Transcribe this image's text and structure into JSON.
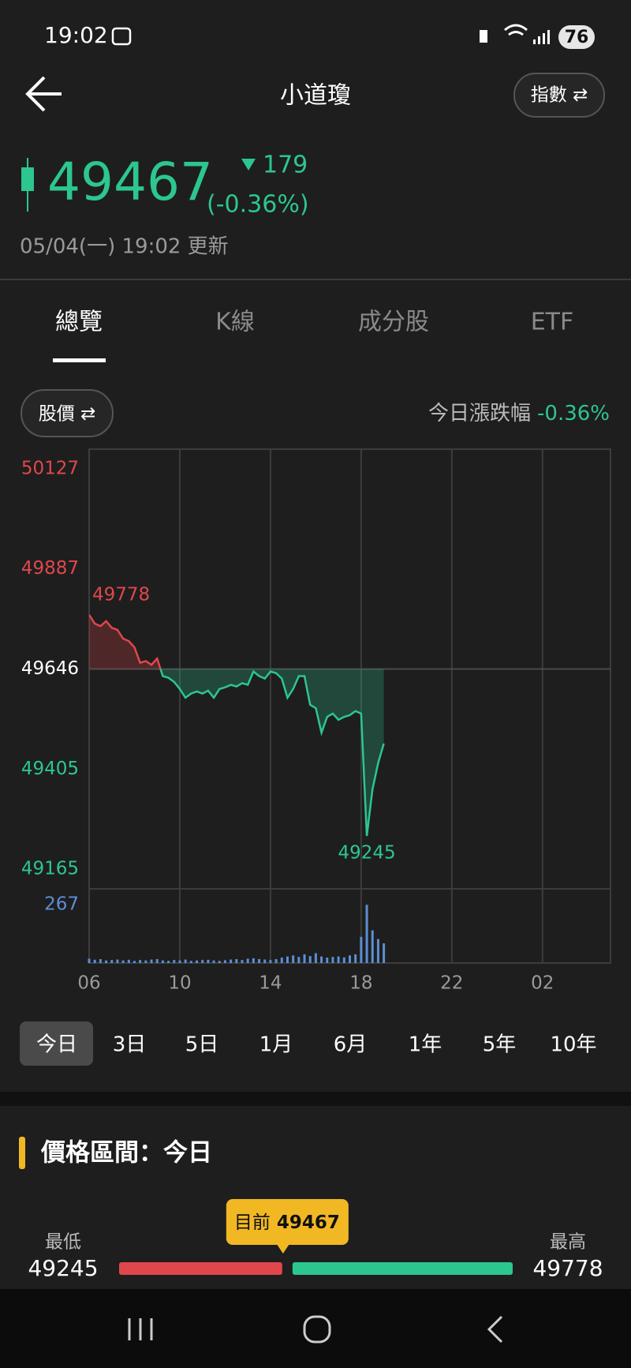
{
  "status_bar": {
    "time": "19:02",
    "battery": "76"
  },
  "header": {
    "title": "小道瓊",
    "toggle": "指數 ⇄"
  },
  "quote": {
    "price": "49467",
    "change": "179",
    "change_pct": "(-0.36%)",
    "updated": "05/04(一) 19:02 更新"
  },
  "tabs": [
    "總覽",
    "K線",
    "成分股",
    "ETF"
  ],
  "chart_header": {
    "mode": "股價 ⇄",
    "label": "今日漲跌幅",
    "value": "-0.36%"
  },
  "chart_data": {
    "type": "line",
    "up_color": "#e0474c",
    "down_color": "#2cc78e",
    "baseline": 49646,
    "x": [
      6,
      6.25,
      6.5,
      6.75,
      7,
      7.25,
      7.5,
      7.75,
      8,
      8.25,
      8.5,
      8.75,
      9,
      9.25,
      9.5,
      9.75,
      10,
      10.25,
      10.5,
      10.75,
      11,
      11.25,
      11.5,
      11.75,
      12,
      12.25,
      12.5,
      12.75,
      13,
      13.25,
      13.5,
      13.75,
      14,
      14.25,
      14.5,
      14.75,
      15,
      15.25,
      15.5,
      15.75,
      16,
      16.25,
      16.5,
      16.75,
      17,
      17.25,
      17.5,
      17.75,
      18,
      18.25,
      18.5,
      18.75,
      19
    ],
    "values": [
      49776,
      49755,
      49749,
      49761,
      49745,
      49740,
      49719,
      49713,
      49698,
      49661,
      49665,
      49656,
      49671,
      49629,
      49625,
      49615,
      49598,
      49577,
      49587,
      49592,
      49587,
      49594,
      49577,
      49598,
      49602,
      49608,
      49604,
      49612,
      49608,
      49640,
      49629,
      49623,
      49640,
      49636,
      49623,
      49577,
      49598,
      49629,
      49629,
      49560,
      49552,
      49493,
      49531,
      49539,
      49524,
      49531,
      49535,
      49545,
      49539,
      49245,
      49357,
      49420,
      49467
    ],
    "xlim": [
      6,
      29
    ],
    "xticks": [
      {
        "value": 6,
        "label": "06"
      },
      10,
      14,
      18,
      22,
      {
        "value": 26,
        "label": "02"
      }
    ],
    "ylim": [
      49118,
      50174
    ],
    "yticks": [
      50127,
      49887,
      49646,
      49405,
      49165
    ],
    "annotations": [
      {
        "x": 6,
        "value": 49778
      },
      {
        "x": 18.25,
        "value": 49245
      }
    ],
    "volume": {
      "color": "#5b8fd6",
      "ylim": [
        0,
        340
      ],
      "yticks": [
        267
      ],
      "values": [
        20,
        15,
        18,
        12,
        14,
        16,
        12,
        15,
        10,
        14,
        12,
        16,
        18,
        12,
        10,
        14,
        12,
        16,
        10,
        12,
        14,
        15,
        12,
        10,
        13,
        16,
        18,
        14,
        20,
        22,
        18,
        16,
        14,
        18,
        25,
        30,
        35,
        28,
        40,
        32,
        45,
        30,
        25,
        28,
        30,
        26,
        35,
        40,
        120,
        267,
        150,
        110,
        90
      ]
    }
  },
  "ranges": [
    "今日",
    "3日",
    "5日",
    "1月",
    "6月",
    "1年",
    "5年",
    "10年"
  ],
  "price_range": {
    "title": "價格區間：今日",
    "low_label": "最低",
    "low": "49245",
    "current_label": "目前",
    "current": "49467",
    "high_label": "最高",
    "high": "49778"
  }
}
